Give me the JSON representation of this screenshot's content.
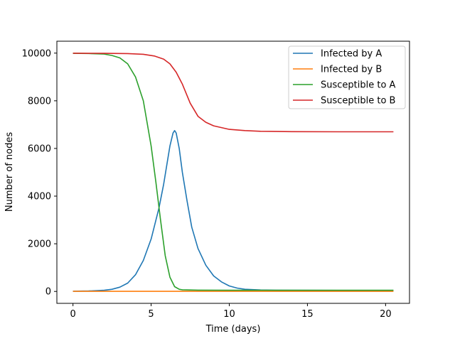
{
  "chart_data": {
    "type": "line",
    "title": "",
    "xlabel": "Time (days)",
    "ylabel": "Number of nodes",
    "xlim": [
      -1.03,
      21.53
    ],
    "ylim": [
      -500,
      10500
    ],
    "xticks": [
      0,
      5,
      10,
      15,
      20
    ],
    "yticks": [
      0,
      2000,
      4000,
      6000,
      8000,
      10000
    ],
    "legend_position": "top-right",
    "grid": false,
    "series": [
      {
        "name": "Infected by A",
        "color": "#1f77b4",
        "x": [
          0,
          1,
          2,
          2.5,
          3,
          3.5,
          4,
          4.5,
          5,
          5.5,
          5.8,
          6,
          6.2,
          6.4,
          6.5,
          6.6,
          6.8,
          7,
          7.3,
          7.6,
          8,
          8.5,
          9,
          9.5,
          10,
          10.5,
          11,
          12,
          13,
          15,
          17,
          20.5
        ],
        "y": [
          10,
          20,
          50,
          90,
          180,
          350,
          700,
          1300,
          2200,
          3500,
          4500,
          5300,
          6100,
          6650,
          6750,
          6650,
          6000,
          5000,
          3800,
          2700,
          1800,
          1100,
          650,
          400,
          230,
          140,
          90,
          60,
          50,
          45,
          42,
          40
        ]
      },
      {
        "name": "Infected by B",
        "color": "#ff7f0e",
        "x": [
          0,
          5,
          10,
          15,
          20.5
        ],
        "y": [
          5,
          5,
          5,
          5,
          5
        ]
      },
      {
        "name": "Susceptible to A",
        "color": "#2ca02c",
        "x": [
          0,
          1,
          2,
          2.5,
          3,
          3.5,
          4,
          4.5,
          5,
          5.3,
          5.6,
          5.9,
          6.2,
          6.5,
          6.8,
          7,
          7.5,
          8,
          10,
          15,
          20.5
        ],
        "y": [
          9990,
          9985,
          9960,
          9900,
          9800,
          9550,
          9000,
          8000,
          6100,
          4600,
          3000,
          1500,
          600,
          200,
          90,
          70,
          60,
          55,
          50,
          50,
          50
        ]
      },
      {
        "name": "Susceptible to B",
        "color": "#d62728",
        "x": [
          0,
          2,
          3.5,
          4.5,
          5.2,
          5.8,
          6.2,
          6.6,
          7,
          7.5,
          8,
          8.5,
          9,
          10,
          11,
          12,
          14,
          17,
          20.5
        ],
        "y": [
          9995,
          9990,
          9980,
          9950,
          9880,
          9750,
          9550,
          9200,
          8700,
          7900,
          7350,
          7100,
          6950,
          6800,
          6750,
          6720,
          6705,
          6700,
          6700
        ]
      }
    ]
  }
}
